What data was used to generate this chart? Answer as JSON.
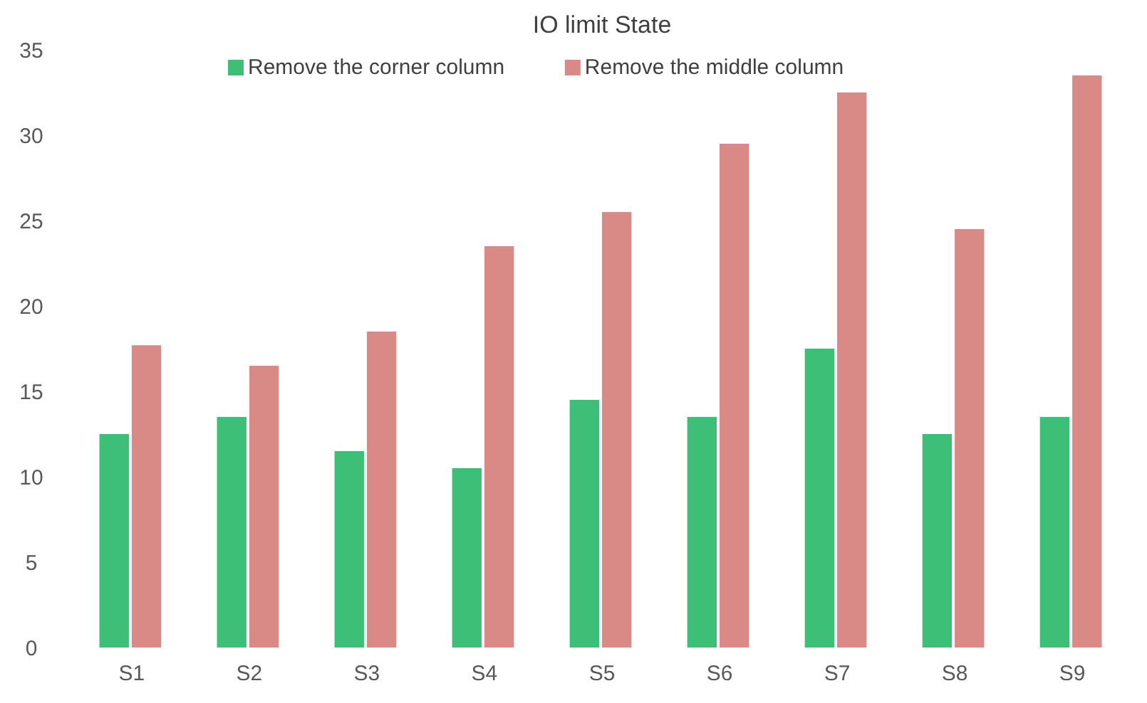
{
  "chart_data": {
    "type": "bar",
    "title": "IO limit State",
    "categories": [
      "S1",
      "S2",
      "S3",
      "S4",
      "S5",
      "S6",
      "S7",
      "S8",
      "S9"
    ],
    "series": [
      {
        "name": "Remove the corner column",
        "color": "#3dbf78",
        "values": [
          12.5,
          13.5,
          11.5,
          10.5,
          14.5,
          13.5,
          17.5,
          12.5,
          13.5
        ]
      },
      {
        "name": "Remove the middle column",
        "color": "#d98a86",
        "values": [
          17.7,
          16.5,
          18.5,
          23.5,
          25.5,
          29.5,
          32.5,
          24.5,
          33.5
        ]
      }
    ],
    "ylim": [
      0,
      35
    ],
    "yticks": [
      0,
      5,
      10,
      15,
      20,
      25,
      30,
      35
    ],
    "legend": "top",
    "grid": false
  }
}
